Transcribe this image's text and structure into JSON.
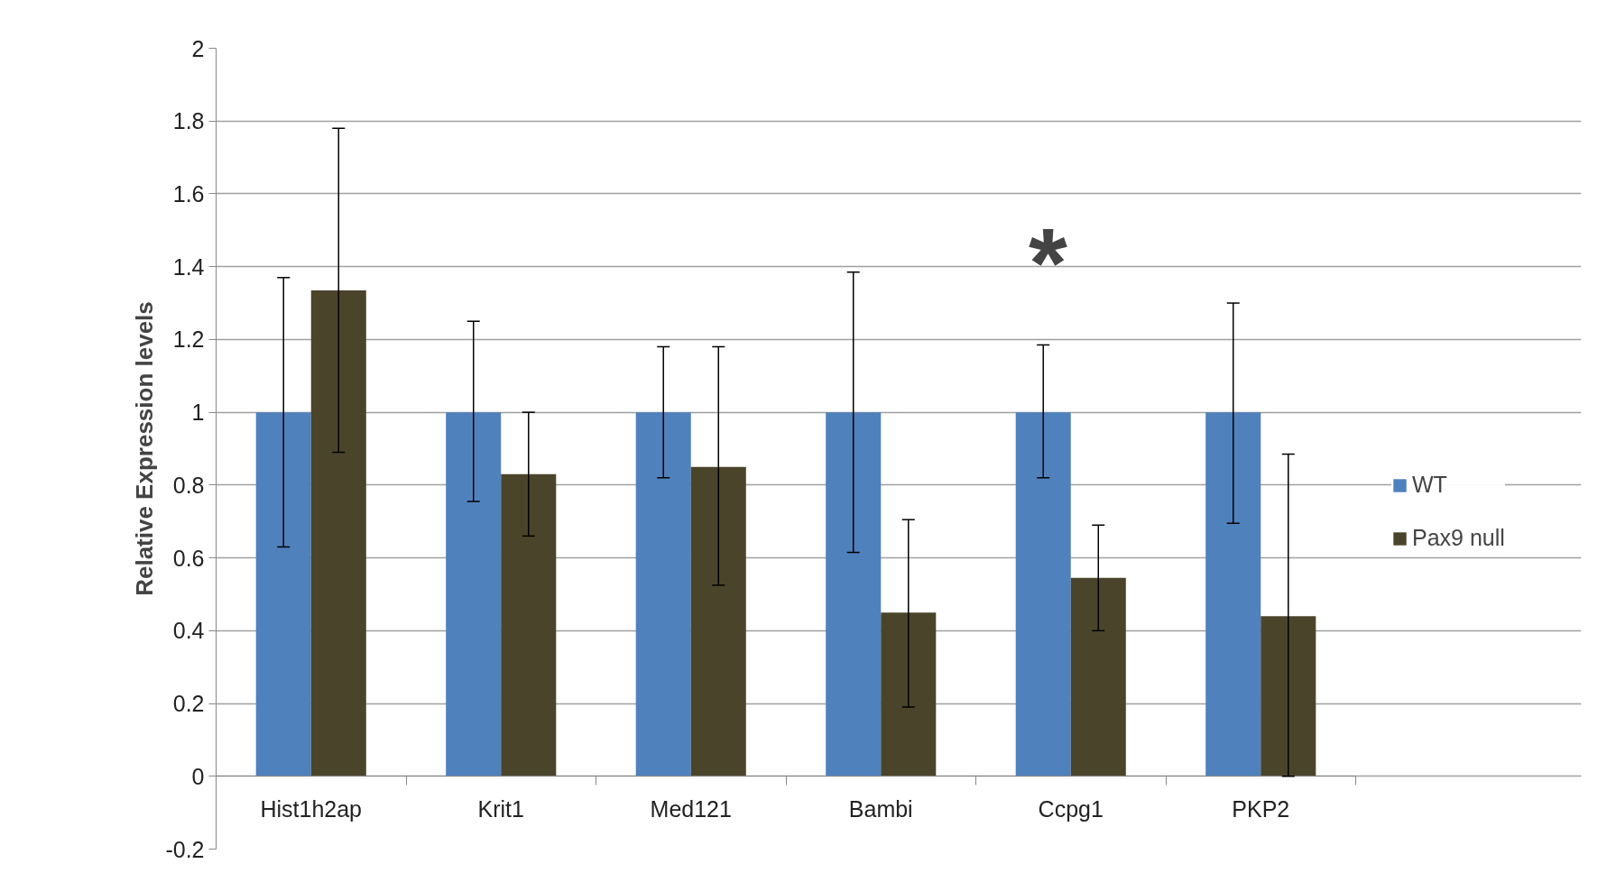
{
  "chart_data": {
    "type": "bar",
    "ylabel": "Relative Expression levels",
    "categories": [
      "Hist1h2ap",
      "Krit1",
      "Med121",
      "Bambi",
      "Ccpg1",
      "PKP2"
    ],
    "series": [
      {
        "name": "WT",
        "color": "#4f81bd",
        "values": [
          1,
          1,
          1,
          1,
          1,
          1
        ],
        "errors": [
          [
            0.63,
            1.37
          ],
          [
            0.755,
            1.25
          ],
          [
            0.82,
            1.18
          ],
          [
            0.615,
            1.385
          ],
          [
            0.82,
            1.185
          ],
          [
            0.695,
            1.3
          ]
        ]
      },
      {
        "name": "Pax9 null",
        "color": "#4a452a",
        "values": [
          1.335,
          0.83,
          0.85,
          0.45,
          0.545,
          0.44
        ],
        "errors": [
          [
            0.89,
            1.78
          ],
          [
            0.66,
            1.0
          ],
          [
            0.525,
            1.18
          ],
          [
            0.19,
            0.705
          ],
          [
            0.4,
            0.69
          ],
          [
            0.0,
            0.885
          ]
        ]
      }
    ],
    "ylim": [
      -0.2,
      2
    ],
    "yticks": [
      -0.2,
      0,
      0.2,
      0.4,
      0.6,
      0.8,
      1,
      1.2,
      1.4,
      1.6,
      1.8,
      2
    ],
    "grid": "y",
    "legend": "right",
    "annotations": [
      "*"
    ]
  }
}
